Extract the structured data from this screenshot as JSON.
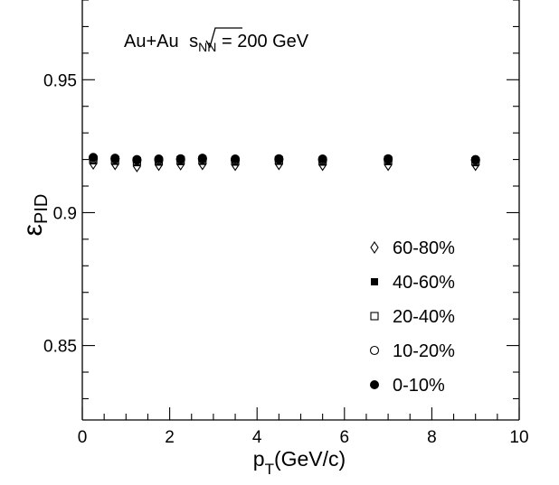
{
  "chart_data": {
    "type": "scatter",
    "xlabel": {
      "main": "p",
      "sub": "T",
      "rest": "(GeV/c)"
    },
    "ylabel": {
      "main": "ε",
      "sub": "PID"
    },
    "xlim": [
      0,
      10
    ],
    "ylim": [
      0.822,
      0.98
    ],
    "x_major_ticks": [
      0,
      2,
      4,
      6,
      8,
      10
    ],
    "x_tick_labels": [
      "0",
      "2",
      "4",
      "6",
      "8",
      "10"
    ],
    "y_major_ticks": [
      0.85,
      0.9,
      0.95
    ],
    "y_tick_labels": [
      "0.85",
      "0.9",
      "0.95"
    ],
    "annotation": {
      "prefix": "Au+Au ",
      "sqrt_main": "s",
      "sqrt_sub": "NN",
      "suffix": " = 200 GeV"
    },
    "legend_position": "bottom-right",
    "x": [
      0.25,
      0.75,
      1.25,
      1.75,
      2.25,
      2.75,
      3.5,
      4.5,
      5.5,
      7.0,
      9.0
    ],
    "series": [
      {
        "name": "60-80%",
        "marker": "open-diamond",
        "values": [
          0.9185,
          0.9183,
          0.9175,
          0.918,
          0.9182,
          0.9183,
          0.918,
          0.9183,
          0.918,
          0.918,
          0.918
        ]
      },
      {
        "name": "40-60%",
        "marker": "filled-square",
        "values": [
          0.9195,
          0.9193,
          0.9188,
          0.919,
          0.9192,
          0.9193,
          0.919,
          0.9193,
          0.919,
          0.9192,
          0.9188
        ]
      },
      {
        "name": "20-40%",
        "marker": "open-square",
        "values": [
          0.92,
          0.9198,
          0.9193,
          0.9195,
          0.9197,
          0.9198,
          0.9195,
          0.9197,
          0.9195,
          0.9197,
          0.9193
        ]
      },
      {
        "name": "10-20%",
        "marker": "open-circle",
        "values": [
          0.9203,
          0.9202,
          0.9197,
          0.9198,
          0.92,
          0.9202,
          0.9198,
          0.92,
          0.9198,
          0.92,
          0.9197
        ]
      },
      {
        "name": "0-10%",
        "marker": "filled-circle",
        "values": [
          0.9208,
          0.9205,
          0.92,
          0.9202,
          0.9203,
          0.9205,
          0.9202,
          0.9203,
          0.9202,
          0.9203,
          0.92
        ]
      }
    ]
  }
}
